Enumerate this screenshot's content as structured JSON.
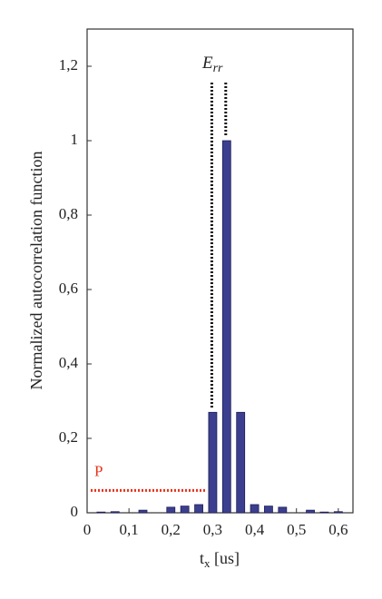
{
  "chart_data": {
    "type": "bar",
    "ylabel": "Normalized autocorrelation function",
    "xlabel": {
      "base": "t",
      "sub": "x",
      "rest": " [us]"
    },
    "annotation": {
      "base": "E",
      "sub": "rr"
    },
    "p_label": "P",
    "p_level": 0.06,
    "x": [
      0.0333,
      0.0667,
      0.1333,
      0.2,
      0.2333,
      0.2667,
      0.3,
      0.3333,
      0.3667,
      0.4,
      0.4333,
      0.4667,
      0.5333,
      0.5667,
      0.6
    ],
    "values": [
      0.002,
      0.003,
      0.007,
      0.015,
      0.018,
      0.022,
      0.27,
      1.0,
      0.27,
      0.022,
      0.018,
      0.015,
      0.007,
      0.002,
      0.003
    ],
    "color": "#3c3f8f",
    "xlim": [
      0,
      0.635
    ],
    "ylim": [
      0,
      1.3
    ],
    "xticks": [
      0,
      {
        "value": 0.1,
        "label": "0,1"
      },
      {
        "value": 0.2,
        "label": "0,2"
      },
      {
        "value": 0.3,
        "label": "0,3"
      },
      {
        "value": 0.4,
        "label": "0,4"
      },
      {
        "value": 0.5,
        "label": "0,5"
      },
      {
        "value": 0.6,
        "label": "0,6"
      }
    ],
    "yticks": [
      0,
      {
        "value": 0.2,
        "label": "0,2"
      },
      {
        "value": 0.4,
        "label": "0,4"
      },
      {
        "value": 0.6,
        "label": "0,6"
      },
      {
        "value": 0.8,
        "label": "0,8"
      },
      1,
      {
        "value": 1.2,
        "label": "1,2"
      }
    ]
  }
}
